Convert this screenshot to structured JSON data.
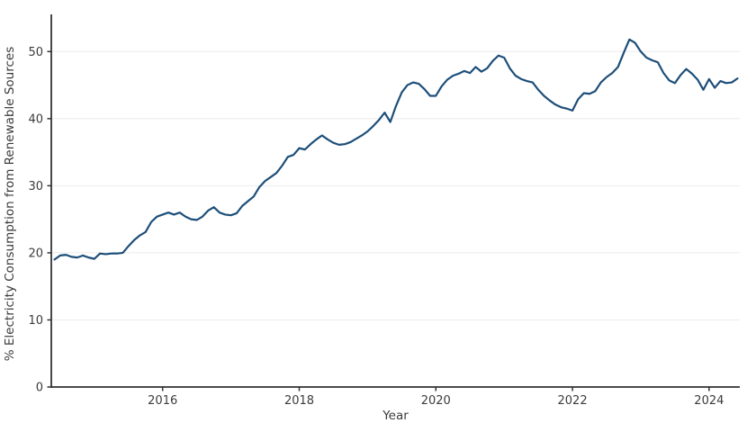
{
  "chart_data": {
    "type": "line",
    "title": "",
    "xlabel": "Year",
    "ylabel": "% Electricity Consumption from Renewable Sources",
    "legend": "none",
    "grid": "horizontal-only",
    "x_ticks": [
      2016,
      2018,
      2020,
      2022,
      2024
    ],
    "y_ticks": [
      0,
      10,
      20,
      30,
      40,
      50
    ],
    "xlim": [
      2014.37,
      2024.45
    ],
    "ylim": [
      0,
      54.6
    ],
    "x_start_year": 2014,
    "x_start_month": 6,
    "x_frequency": "monthly",
    "line_color": "#1d4e79",
    "axis_color": "#333333",
    "grid_color": "#ebebeb",
    "tick_label_color": "#3b3b3b",
    "values": [
      19.0,
      19.6,
      19.7,
      19.4,
      19.3,
      19.6,
      19.3,
      19.1,
      19.9,
      19.8,
      19.9,
      19.9,
      20.0,
      21.0,
      21.9,
      22.6,
      23.1,
      24.6,
      25.4,
      25.7,
      26.0,
      25.7,
      26.0,
      25.4,
      25.0,
      24.9,
      25.4,
      26.3,
      26.8,
      26.0,
      25.7,
      25.6,
      25.9,
      27.0,
      27.7,
      28.4,
      29.8,
      30.7,
      31.3,
      31.9,
      33.0,
      34.3,
      34.6,
      35.6,
      35.4,
      36.2,
      36.9,
      37.5,
      36.9,
      36.4,
      36.1,
      36.2,
      36.5,
      37.0,
      37.5,
      38.1,
      38.9,
      39.8,
      40.9,
      39.5,
      41.9,
      43.9,
      45.0,
      45.4,
      45.2,
      44.4,
      43.4,
      43.4,
      44.8,
      45.8,
      46.4,
      46.7,
      47.1,
      46.8,
      47.7,
      47.0,
      47.5,
      48.6,
      49.4,
      49.1,
      47.5,
      46.4,
      45.9,
      45.6,
      45.4,
      44.3,
      43.4,
      42.7,
      42.1,
      41.7,
      41.5,
      41.2,
      42.9,
      43.8,
      43.7,
      44.1,
      45.4,
      46.2,
      46.8,
      47.7,
      49.8,
      51.8,
      51.3,
      50.0,
      49.1,
      48.7,
      48.4,
      46.8,
      45.7,
      45.3,
      46.5,
      47.4,
      46.7,
      45.8,
      44.3,
      45.9,
      44.6,
      45.6,
      45.3,
      45.4,
      46.0
    ]
  }
}
